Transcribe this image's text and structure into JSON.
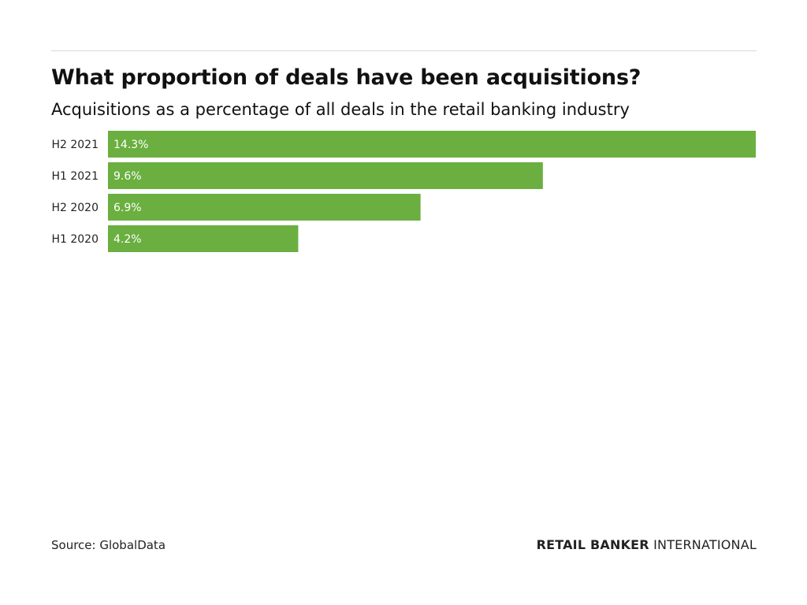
{
  "chart_data": {
    "type": "bar",
    "orientation": "horizontal",
    "title": "What proportion of deals have been acquisitions?",
    "subtitle": "Acquisitions as a percentage of all deals in the retail banking industry",
    "categories": [
      "H2 2021",
      "H1 2021",
      "H2 2020",
      "H1 2020"
    ],
    "values": [
      14.3,
      9.6,
      6.9,
      4.2
    ],
    "value_labels": [
      "14.3%",
      "9.6%",
      "6.9%",
      "4.2%"
    ],
    "unit": "%",
    "xlim": [
      0,
      14.3
    ],
    "grid": false,
    "legend": "none",
    "bar_color": "#6aaf40",
    "source": "Source: GlobalData"
  },
  "branding": {
    "bold": "RETAIL BANKER",
    "light": " INTERNATIONAL"
  }
}
